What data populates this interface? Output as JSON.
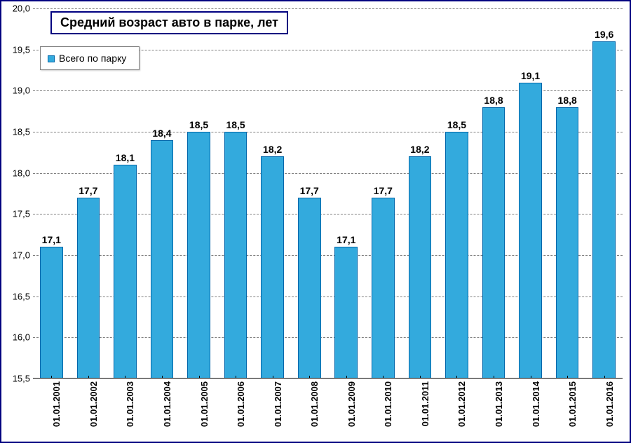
{
  "chart": {
    "type": "bar",
    "title": "Средний возраст авто в парке, лет",
    "legend": {
      "label": "Всего по парку",
      "marker_color": "#33aadd"
    },
    "categories": [
      "01.01.2001",
      "01.01.2002",
      "01.01.2003",
      "01.01.2004",
      "01.01.2005",
      "01.01.2006",
      "01.01.2007",
      "01.01.2008",
      "01.01.2009",
      "01.01.2010",
      "01.01.2011",
      "01.01.2012",
      "01.01.2013",
      "01.01.2014",
      "01.01.2015",
      "01.01.2016"
    ],
    "values": [
      17.1,
      17.7,
      18.1,
      18.4,
      18.5,
      18.5,
      18.2,
      17.7,
      17.1,
      17.7,
      18.2,
      18.5,
      18.8,
      19.1,
      18.8,
      19.6
    ],
    "value_labels": [
      "17,1",
      "17,7",
      "18,1",
      "18,4",
      "18,5",
      "18,5",
      "18,2",
      "17,7",
      "17,1",
      "17,7",
      "18,2",
      "18,5",
      "18,8",
      "19,1",
      "18,8",
      "19,6"
    ],
    "bar_color": "#33aadd",
    "bar_border_color": "#0066aa",
    "ylim": [
      15.5,
      20.0
    ],
    "yticks": [
      15.5,
      16.0,
      16.5,
      17.0,
      17.5,
      18.0,
      18.5,
      19.0,
      19.5,
      20.0
    ],
    "ytick_labels": [
      "15,5",
      "16,0",
      "16,5",
      "17,0",
      "17,5",
      "18,0",
      "18,5",
      "19,0",
      "19,5",
      "20,0"
    ],
    "grid_color": "#808080",
    "background_color": "#ffffff",
    "border_color": "#000080",
    "title_fontsize": 18,
    "label_fontsize": 14,
    "tick_fontsize": 13,
    "bar_width_ratio": 0.62
  }
}
